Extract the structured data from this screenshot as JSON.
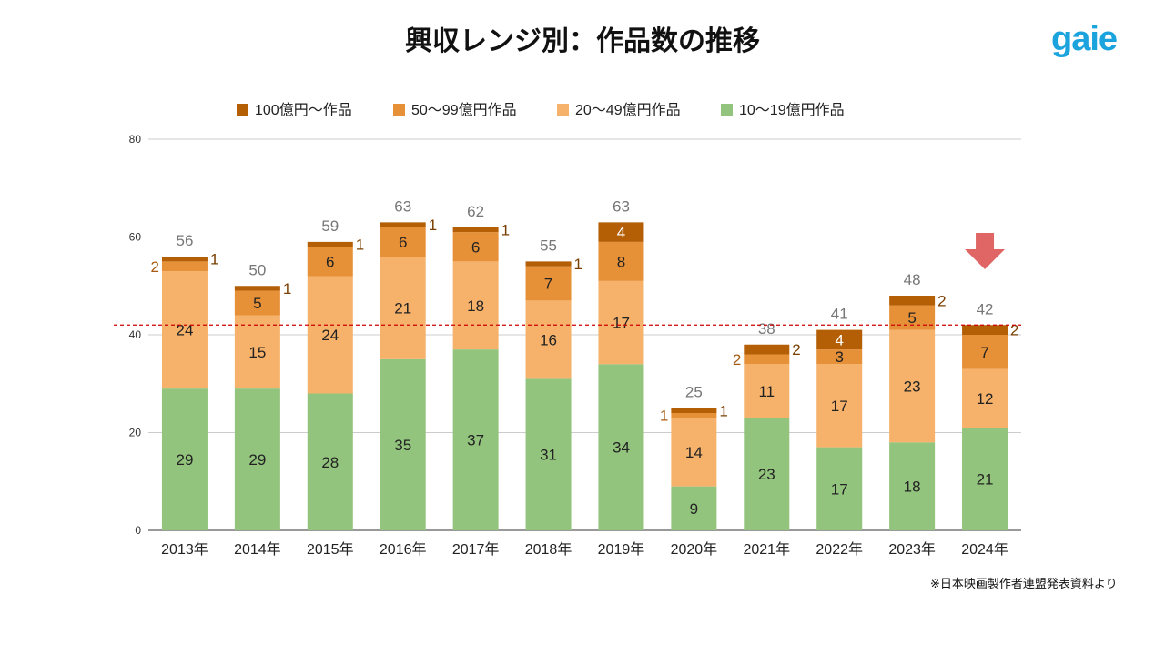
{
  "title": "興収レンジ別：作品数の推移",
  "logo": "gaie",
  "note": "※日本映画製作者連盟発表資料より",
  "chart_data": {
    "type": "bar",
    "stacked": true,
    "categories": [
      "2013年",
      "2014年",
      "2015年",
      "2016年",
      "2017年",
      "2018年",
      "2019年",
      "2020年",
      "2021年",
      "2022年",
      "2023年",
      "2024年"
    ],
    "series": [
      {
        "name": "10〜19億円作品",
        "color": "#93c47d",
        "values": [
          29,
          29,
          28,
          35,
          37,
          31,
          34,
          9,
          23,
          17,
          18,
          21
        ]
      },
      {
        "name": "20〜49億円作品",
        "color": "#f6b26b",
        "values": [
          24,
          15,
          24,
          21,
          18,
          16,
          17,
          14,
          11,
          17,
          23,
          12
        ]
      },
      {
        "name": "50〜99億円作品",
        "color": "#e69138",
        "values": [
          2,
          5,
          6,
          6,
          6,
          7,
          8,
          1,
          2,
          3,
          5,
          7
        ]
      },
      {
        "name": "100億円〜作品",
        "color": "#b45f06",
        "values": [
          1,
          1,
          1,
          1,
          1,
          1,
          4,
          1,
          2,
          4,
          2,
          2
        ]
      }
    ],
    "totals": [
      56,
      50,
      59,
      63,
      62,
      55,
      63,
      25,
      38,
      41,
      48,
      42
    ],
    "legend_order": [
      "100億円〜作品",
      "50〜99億円作品",
      "20〜49億円作品",
      "10〜19億円作品"
    ],
    "legend_placement": "top",
    "ylim": [
      0,
      80
    ],
    "yticks": [
      0,
      20,
      40,
      60,
      80
    ],
    "grid": true,
    "reference_line": {
      "value": 42,
      "color": "#cc0000",
      "style": "dashed"
    },
    "highlight_arrow": {
      "category": "2024年",
      "color": "#e06666"
    }
  }
}
